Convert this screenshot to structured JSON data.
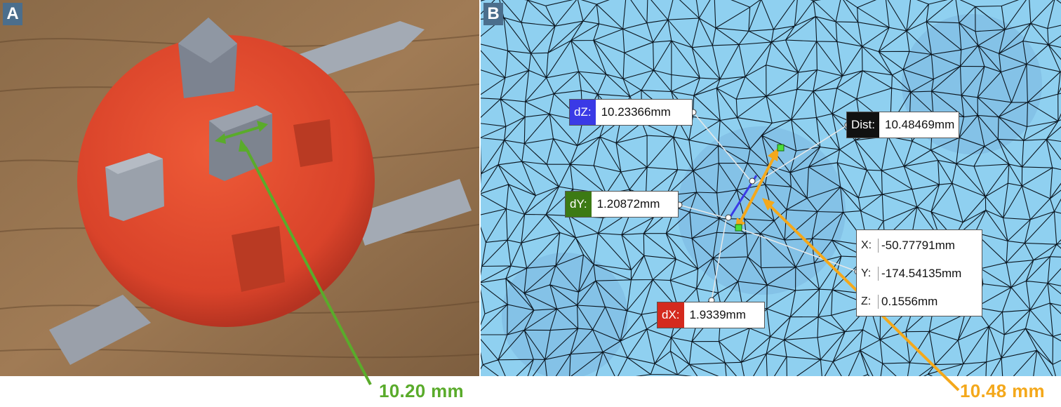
{
  "panel_a": {
    "letter": "A",
    "measurement_label": "10.20 mm"
  },
  "panel_b": {
    "letter": "B",
    "measurement_label": "10.48 mm",
    "dz": {
      "tag": "dZ:",
      "value": "10.23366mm"
    },
    "dist": {
      "tag": "Dist:",
      "value": "10.48469mm"
    },
    "dy": {
      "tag": "dY:",
      "value": "1.20872mm"
    },
    "dx": {
      "tag": "dX:",
      "value": "1.9339mm"
    },
    "coords": {
      "x": {
        "key": "X:",
        "value": "-50.77791mm"
      },
      "y": {
        "key": "Y:",
        "value": "-174.54135mm"
      },
      "z": {
        "key": "Z:",
        "value": "0.1556mm"
      }
    }
  },
  "colors": {
    "green_arrow": "#5aab2b",
    "orange_arrow": "#f4a81b",
    "dz_tag": "#3a3ae6",
    "dy_tag": "#3c7a14",
    "dx_tag": "#d42a1e",
    "dist_tag": "#111111",
    "dome": "#e2492b",
    "mesh_bg": "#8fd0f0"
  }
}
